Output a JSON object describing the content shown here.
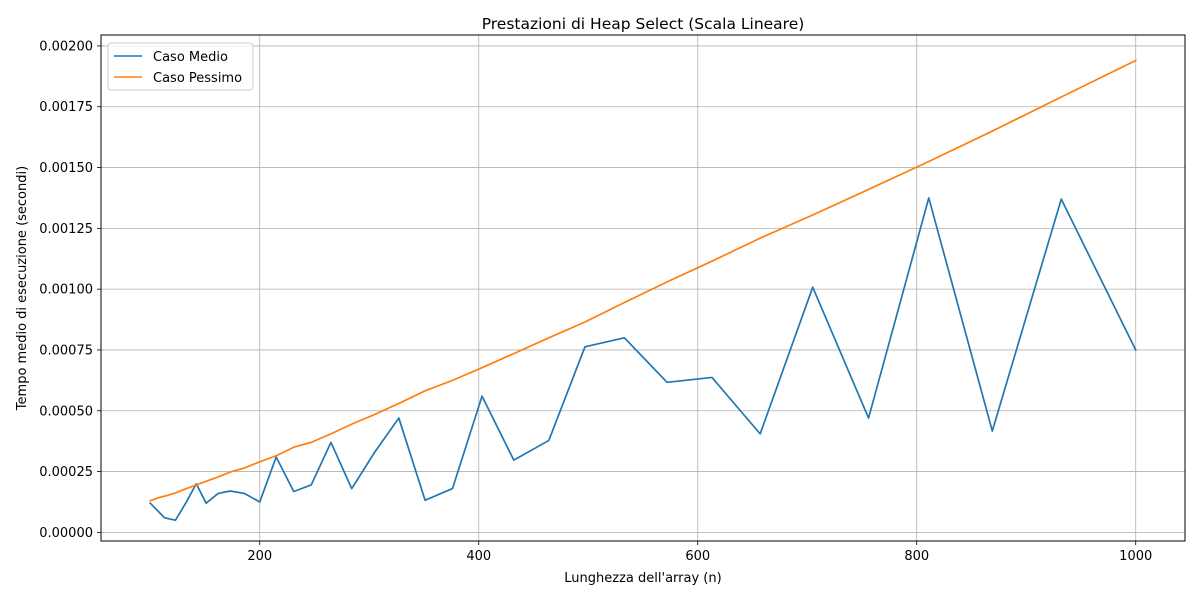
{
  "chart_data": {
    "type": "line",
    "title": "Prestazioni di Heap Select (Scala Lineare)",
    "xlabel": "Lunghezza dell'array (n)",
    "ylabel": "Tempo medio di esecuzione (secondi)",
    "xlim": [
      55,
      1045
    ],
    "ylim": [
      -3.55e-05,
      0.002045
    ],
    "grid": true,
    "legend_position": "top-left",
    "x_ticks": [
      200,
      400,
      600,
      800,
      1000
    ],
    "x_tick_labels": [
      "200",
      "400",
      "600",
      "800",
      "1000"
    ],
    "y_ticks": [
      0,
      0.00025,
      0.0005,
      0.00075,
      0.001,
      0.00125,
      0.0015,
      0.00175,
      0.002
    ],
    "y_tick_labels": [
      "0.00000",
      "0.00025",
      "0.00050",
      "0.00075",
      "0.00100",
      "0.00125",
      "0.00150",
      "0.00175",
      "0.00200"
    ],
    "series": [
      {
        "name": "Caso Medio",
        "color": "#1f77b4",
        "x": [
          100,
          113,
          123,
          133,
          142,
          151,
          162,
          173,
          186,
          200,
          215,
          231,
          247,
          265,
          284,
          305,
          327,
          351,
          376,
          403,
          432,
          464,
          497,
          533,
          572,
          613,
          657,
          705,
          756,
          811,
          869,
          932,
          1000
        ],
        "y": [
          0.00012,
          6e-05,
          5e-05,
          0.000125,
          0.0002,
          0.00012,
          0.00016,
          0.00017,
          0.00016,
          0.000125,
          0.00031,
          0.000168,
          0.000195,
          0.00037,
          0.00018,
          0.00033,
          0.00047,
          0.000132,
          0.00018,
          0.00056,
          0.000297,
          0.000378,
          0.000763,
          0.0008,
          0.000617,
          0.000637,
          0.000405,
          0.001008,
          0.00047,
          0.001375,
          0.000417,
          0.00137,
          0.00075
        ]
      },
      {
        "name": "Caso Pessimo",
        "color": "#ff7f0e",
        "x": [
          100,
          107,
          114,
          123,
          133,
          142,
          151,
          162,
          173,
          186,
          200,
          215,
          231,
          247,
          265,
          284,
          305,
          327,
          351,
          376,
          403,
          432,
          464,
          497,
          533,
          572,
          613,
          657,
          705,
          756,
          811,
          869,
          932,
          1000
        ],
        "y": [
          0.00013,
          0.000142,
          0.00015,
          0.000162,
          0.00018,
          0.000195,
          0.00021,
          0.000228,
          0.000248,
          0.000265,
          0.00029,
          0.000315,
          0.00035,
          0.00037,
          0.000405,
          0.000445,
          0.000485,
          0.00053,
          0.000582,
          0.000625,
          0.000677,
          0.000735,
          0.0008,
          0.000865,
          0.000945,
          0.00103,
          0.001115,
          0.00121,
          0.001305,
          0.00141,
          0.001525,
          0.00165,
          0.00179,
          0.00194
        ]
      }
    ]
  }
}
